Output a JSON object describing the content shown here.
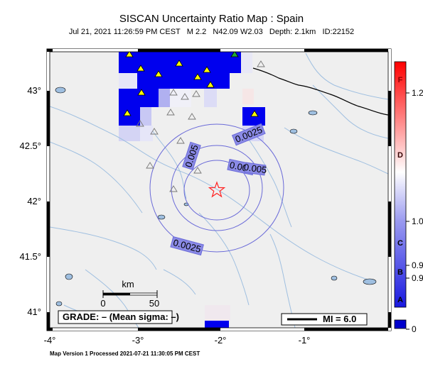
{
  "title": "SISCAN Uncertainty Ratio Map : Spain",
  "subtitle": {
    "datetime": "Jul 21, 2021 11:26:59 PM CEST",
    "magnitude": "M 2.2",
    "location": "N42.09 W2.03",
    "depth": "Depth: 2.1km",
    "id": "ID:22152"
  },
  "footer": "Map Version 1 Processed 2021-07-21 11:30:05 PM CEST",
  "map": {
    "x_ticks": [
      "-4°",
      "-3°",
      "-2°",
      "-1°"
    ],
    "y_ticks": [
      "43°",
      "42.5°",
      "42°",
      "41.5°",
      "41°"
    ],
    "epicenter_label": "epicenter",
    "contour_labels": [
      "0.0025",
      "0.005",
      "0.005",
      "0.005",
      "0.0025"
    ],
    "scale_bar": {
      "unit": "km",
      "min": "0",
      "max": "50"
    },
    "grade_box": "GRADE: – (Mean sigma: –)",
    "legend": {
      "mmi_label": "MI = 6.0"
    }
  },
  "colorbar": {
    "tick_labels": [
      "1.2",
      "1.0",
      "0.9",
      "0.9",
      "0"
    ],
    "grades": [
      "F",
      "D",
      "C",
      "B",
      "A"
    ],
    "colors": {
      "low": "#0000cc",
      "mid": "#ffffff",
      "high": "#ff0000"
    }
  },
  "colors": {
    "ocean_land": "#efefef",
    "river": "#9fbfe0",
    "contour": "#6a6ad8",
    "cell_blue": "#0000ee",
    "station_yellow": "#ffff00",
    "station_green": "#22aa33",
    "epicenter": "#ff2222"
  }
}
